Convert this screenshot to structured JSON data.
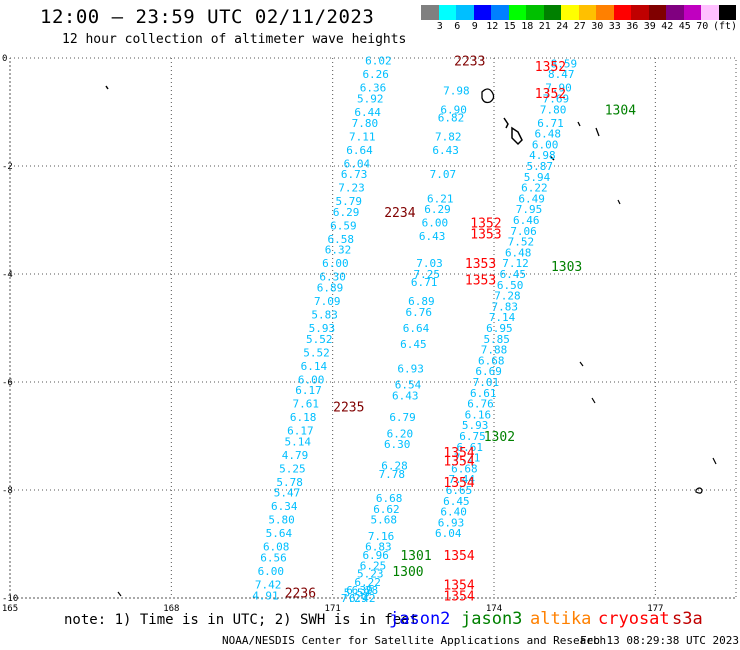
{
  "title": "12:00 – 23:59 UTC 02/11/2023",
  "subtitle": "12 hour collection of altimeter wave heights",
  "legend": {
    "unit_label": "(ft)",
    "colors": [
      "#808080",
      "#00ffff",
      "#00bfff",
      "#0000ff",
      "#0080ff",
      "#00ff00",
      "#00c000",
      "#008000",
      "#ffff00",
      "#ffc000",
      "#ff8000",
      "#ff0000",
      "#c00000",
      "#800000",
      "#800080",
      "#c000c0",
      "#ffc0ff",
      "#000000"
    ],
    "ticks": [
      "3",
      "6",
      "9",
      "12",
      "15",
      "18",
      "21",
      "24",
      "27",
      "30",
      "33",
      "36",
      "39",
      "42",
      "45",
      "70"
    ]
  },
  "axes": {
    "x_ticks": [
      "165",
      "168",
      "171",
      "174",
      "177"
    ],
    "y_ticks": [
      "0",
      "-2",
      "-4",
      "-6",
      "-8",
      "-10"
    ]
  },
  "tracks": [
    {
      "satellite": "jason2",
      "color": "#00bfff",
      "points": [
        {
          "lon": 171.85,
          "lat": -0.05,
          "swh": "6.02"
        },
        {
          "lon": 171.8,
          "lat": -0.3,
          "swh": "6.26"
        },
        {
          "lon": 171.75,
          "lat": -0.55,
          "swh": "6.36"
        },
        {
          "lon": 171.7,
          "lat": -0.75,
          "swh": "5.92"
        },
        {
          "lon": 171.65,
          "lat": -1.0,
          "swh": "6.44"
        },
        {
          "lon": 171.6,
          "lat": -1.2,
          "swh": "7.80"
        },
        {
          "lon": 171.55,
          "lat": -1.45,
          "swh": "7.11"
        },
        {
          "lon": 171.5,
          "lat": -1.7,
          "swh": "6.64"
        },
        {
          "lon": 171.45,
          "lat": -1.95,
          "swh": "6.04"
        },
        {
          "lon": 171.4,
          "lat": -2.15,
          "swh": "6.73"
        },
        {
          "lon": 171.35,
          "lat": -2.4,
          "swh": "7.23"
        },
        {
          "lon": 171.3,
          "lat": -2.65,
          "swh": "5.79"
        },
        {
          "lon": 171.25,
          "lat": -2.85,
          "swh": "6.29"
        },
        {
          "lon": 171.2,
          "lat": -3.1,
          "swh": "6.59"
        },
        {
          "lon": 171.15,
          "lat": -3.35,
          "swh": "6.58"
        },
        {
          "lon": 171.1,
          "lat": -3.55,
          "swh": "6.32"
        },
        {
          "lon": 171.05,
          "lat": -3.8,
          "swh": "6.00"
        },
        {
          "lon": 171.0,
          "lat": -4.05,
          "swh": "6.30"
        },
        {
          "lon": 170.95,
          "lat": -4.25,
          "swh": "6.89"
        },
        {
          "lon": 170.9,
          "lat": -4.5,
          "swh": "7.09"
        },
        {
          "lon": 170.85,
          "lat": -4.75,
          "swh": "5.83"
        },
        {
          "lon": 170.8,
          "lat": -5.0,
          "swh": "5.93"
        },
        {
          "lon": 170.75,
          "lat": -5.2,
          "swh": "5.52"
        },
        {
          "lon": 170.7,
          "lat": -5.45,
          "swh": "5.52"
        },
        {
          "lon": 170.65,
          "lat": -5.7,
          "swh": "6.14"
        },
        {
          "lon": 170.6,
          "lat": -5.95,
          "swh": "6.00"
        },
        {
          "lon": 170.55,
          "lat": -6.15,
          "swh": "6.17"
        },
        {
          "lon": 170.5,
          "lat": -6.4,
          "swh": "7.61"
        },
        {
          "lon": 170.45,
          "lat": -6.65,
          "swh": "6.18"
        },
        {
          "lon": 170.4,
          "lat": -6.9,
          "swh": "6.17"
        },
        {
          "lon": 170.35,
          "lat": -7.1,
          "swh": "5.14"
        },
        {
          "lon": 170.3,
          "lat": -7.35,
          "swh": "4.79"
        },
        {
          "lon": 170.25,
          "lat": -7.6,
          "swh": "5.25"
        },
        {
          "lon": 170.2,
          "lat": -7.85,
          "swh": "5.78"
        },
        {
          "lon": 170.15,
          "lat": -8.05,
          "swh": "5.47"
        },
        {
          "lon": 170.1,
          "lat": -8.3,
          "swh": "6.34"
        },
        {
          "lon": 170.05,
          "lat": -8.55,
          "swh": "5.80"
        },
        {
          "lon": 170.0,
          "lat": -8.8,
          "swh": "5.64"
        },
        {
          "lon": 169.95,
          "lat": -9.05,
          "swh": "6.08"
        },
        {
          "lon": 169.9,
          "lat": -9.25,
          "swh": "6.56"
        },
        {
          "lon": 169.85,
          "lat": -9.5,
          "swh": "6.00"
        },
        {
          "lon": 169.8,
          "lat": -9.75,
          "swh": "7.42"
        },
        {
          "lon": 169.75,
          "lat": -9.95,
          "swh": "4.91"
        }
      ]
    },
    {
      "satellite": "jason3",
      "color": "#00bfff",
      "points": [
        {
          "lon": 175.3,
          "lat": -0.1,
          "swh": "8.59"
        },
        {
          "lon": 175.25,
          "lat": -0.3,
          "swh": "8.47"
        },
        {
          "lon": 175.2,
          "lat": -0.55,
          "swh": "7.90"
        },
        {
          "lon": 175.15,
          "lat": -0.75,
          "swh": "7.69"
        },
        {
          "lon": 175.1,
          "lat": -0.95,
          "swh": "7.80"
        },
        {
          "lon": 175.05,
          "lat": -1.2,
          "swh": "6.71"
        },
        {
          "lon": 175.0,
          "lat": -1.4,
          "swh": "6.48"
        },
        {
          "lon": 174.95,
          "lat": -1.6,
          "swh": "6.00"
        },
        {
          "lon": 174.9,
          "lat": -1.8,
          "swh": "4.98"
        },
        {
          "lon": 174.85,
          "lat": -2.0,
          "swh": "5.87"
        },
        {
          "lon": 174.8,
          "lat": -2.2,
          "swh": "5.94"
        },
        {
          "lon": 174.75,
          "lat": -2.4,
          "swh": "6.22"
        },
        {
          "lon": 174.7,
          "lat": -2.6,
          "swh": "6.49"
        },
        {
          "lon": 174.65,
          "lat": -2.8,
          "swh": "7.95"
        },
        {
          "lon": 174.6,
          "lat": -3.0,
          "swh": "6.46"
        },
        {
          "lon": 174.55,
          "lat": -3.2,
          "swh": "7.06"
        },
        {
          "lon": 174.5,
          "lat": -3.4,
          "swh": "7.52"
        },
        {
          "lon": 174.45,
          "lat": -3.6,
          "swh": "6.48"
        },
        {
          "lon": 174.4,
          "lat": -3.8,
          "swh": "7.12"
        },
        {
          "lon": 174.35,
          "lat": -4.0,
          "swh": "6.45"
        },
        {
          "lon": 174.3,
          "lat": -4.2,
          "swh": "6.50"
        },
        {
          "lon": 174.25,
          "lat": -4.4,
          "swh": "7.28"
        },
        {
          "lon": 174.2,
          "lat": -4.6,
          "swh": "7.83"
        },
        {
          "lon": 174.15,
          "lat": -4.8,
          "swh": "7.14"
        },
        {
          "lon": 174.1,
          "lat": -5.0,
          "swh": "6.95"
        },
        {
          "lon": 174.05,
          "lat": -5.2,
          "swh": "5.85"
        },
        {
          "lon": 174.0,
          "lat": -5.4,
          "swh": "7.88"
        },
        {
          "lon": 173.95,
          "lat": -5.6,
          "swh": "6.68"
        },
        {
          "lon": 173.9,
          "lat": -5.8,
          "swh": "6.69"
        },
        {
          "lon": 173.85,
          "lat": -6.0,
          "swh": "7.01"
        },
        {
          "lon": 173.8,
          "lat": -6.2,
          "swh": "6.61"
        },
        {
          "lon": 173.75,
          "lat": -6.4,
          "swh": "6.76"
        },
        {
          "lon": 173.7,
          "lat": -6.6,
          "swh": "6.16"
        },
        {
          "lon": 173.65,
          "lat": -6.8,
          "swh": "5.93"
        },
        {
          "lon": 173.6,
          "lat": -7.0,
          "swh": "6.75"
        },
        {
          "lon": 173.55,
          "lat": -7.2,
          "swh": "6.61"
        },
        {
          "lon": 173.5,
          "lat": -7.4,
          "swh": "7.21"
        },
        {
          "lon": 173.45,
          "lat": -7.6,
          "swh": "6.68"
        },
        {
          "lon": 173.4,
          "lat": -7.8,
          "swh": "7.44"
        },
        {
          "lon": 173.35,
          "lat": -8.0,
          "swh": "6.65"
        },
        {
          "lon": 173.3,
          "lat": -8.2,
          "swh": "6.45"
        },
        {
          "lon": 173.25,
          "lat": -8.4,
          "swh": "6.40"
        },
        {
          "lon": 173.2,
          "lat": -8.6,
          "swh": "6.93"
        },
        {
          "lon": 173.15,
          "lat": -8.8,
          "swh": "6.04"
        }
      ]
    },
    {
      "satellite": "altika",
      "color": "#00bfff",
      "points": [
        {
          "lon": 173.3,
          "lat": -0.6,
          "swh": "7.98"
        },
        {
          "lon": 173.25,
          "lat": -0.95,
          "swh": "6.90"
        },
        {
          "lon": 173.2,
          "lat": -1.1,
          "swh": "6.82"
        },
        {
          "lon": 173.15,
          "lat": -1.45,
          "swh": "7.82"
        },
        {
          "lon": 173.1,
          "lat": -1.7,
          "swh": "6.43"
        },
        {
          "lon": 173.05,
          "lat": -2.15,
          "swh": "7.07"
        },
        {
          "lon": 173.0,
          "lat": -2.6,
          "swh": "6.21"
        },
        {
          "lon": 172.95,
          "lat": -2.8,
          "swh": "6.29"
        },
        {
          "lon": 172.9,
          "lat": -3.05,
          "swh": "6.00"
        },
        {
          "lon": 172.85,
          "lat": -3.3,
          "swh": "6.43"
        },
        {
          "lon": 172.8,
          "lat": -3.8,
          "swh": "7.03"
        },
        {
          "lon": 172.75,
          "lat": -4.0,
          "swh": "7.25"
        },
        {
          "lon": 172.7,
          "lat": -4.15,
          "swh": "6.71"
        },
        {
          "lon": 172.65,
          "lat": -4.5,
          "swh": "6.89"
        },
        {
          "lon": 172.6,
          "lat": -4.7,
          "swh": "6.76"
        },
        {
          "lon": 172.55,
          "lat": -5.0,
          "swh": "6.64"
        },
        {
          "lon": 172.5,
          "lat": -5.3,
          "swh": "6.45"
        },
        {
          "lon": 172.45,
          "lat": -5.75,
          "swh": "6.93"
        },
        {
          "lon": 172.4,
          "lat": -6.05,
          "swh": "6.54"
        },
        {
          "lon": 172.35,
          "lat": -6.25,
          "swh": "6.43"
        },
        {
          "lon": 172.3,
          "lat": -6.65,
          "swh": "6.79"
        },
        {
          "lon": 172.25,
          "lat": -6.95,
          "swh": "6.20"
        },
        {
          "lon": 172.2,
          "lat": -7.15,
          "swh": "6.30"
        },
        {
          "lon": 172.15,
          "lat": -7.55,
          "swh": "6.28"
        },
        {
          "lon": 172.1,
          "lat": -7.7,
          "swh": "7.78"
        },
        {
          "lon": 172.05,
          "lat": -8.15,
          "swh": "6.68"
        },
        {
          "lon": 172.0,
          "lat": -8.35,
          "swh": "6.62"
        },
        {
          "lon": 171.95,
          "lat": -8.55,
          "swh": "5.68"
        },
        {
          "lon": 171.9,
          "lat": -8.85,
          "swh": "7.16"
        },
        {
          "lon": 171.85,
          "lat": -9.05,
          "swh": "6.83"
        },
        {
          "lon": 171.8,
          "lat": -9.2,
          "swh": "6.96"
        },
        {
          "lon": 171.75,
          "lat": -9.4,
          "swh": "6.25"
        },
        {
          "lon": 171.7,
          "lat": -9.55,
          "swh": "5.23"
        },
        {
          "lon": 171.65,
          "lat": -9.7,
          "swh": "6.22"
        },
        {
          "lon": 171.6,
          "lat": -9.85,
          "swh": "6.28"
        },
        {
          "lon": 171.55,
          "lat": -10.0,
          "swh": "6.42"
        },
        {
          "lon": 171.5,
          "lat": -9.85,
          "swh": "6.39"
        },
        {
          "lon": 171.45,
          "lat": -9.9,
          "swh": "5.59"
        },
        {
          "lon": 171.4,
          "lat": -10.0,
          "swh": "7.29"
        }
      ]
    }
  ],
  "time_labels": [
    {
      "lon": 173.55,
      "lat": -0.05,
      "text": "2233",
      "color": "#800000"
    },
    {
      "lon": 175.05,
      "lat": -0.15,
      "text": "1352",
      "color": "#ff0000"
    },
    {
      "lon": 175.05,
      "lat": -0.65,
      "text": "1352",
      "color": "#ff0000"
    },
    {
      "lon": 176.35,
      "lat": -0.95,
      "text": "1304",
      "color": "#008000"
    },
    {
      "lon": 172.25,
      "lat": -2.85,
      "text": "2234",
      "color": "#800000"
    },
    {
      "lon": 173.85,
      "lat": -3.05,
      "text": "1352",
      "color": "#ff0000"
    },
    {
      "lon": 173.85,
      "lat": -3.25,
      "text": "1353",
      "color": "#ff0000"
    },
    {
      "lon": 173.75,
      "lat": -3.8,
      "text": "1353",
      "color": "#ff0000"
    },
    {
      "lon": 173.75,
      "lat": -4.1,
      "text": "1353",
      "color": "#ff0000"
    },
    {
      "lon": 175.35,
      "lat": -3.85,
      "text": "1303",
      "color": "#008000"
    },
    {
      "lon": 171.3,
      "lat": -6.45,
      "text": "2235",
      "color": "#800000"
    },
    {
      "lon": 174.1,
      "lat": -7.0,
      "text": "1302",
      "color": "#008000"
    },
    {
      "lon": 173.35,
      "lat": -7.3,
      "text": "1354",
      "color": "#ff0000"
    },
    {
      "lon": 173.35,
      "lat": -7.45,
      "text": "1354",
      "color": "#ff0000"
    },
    {
      "lon": 173.35,
      "lat": -7.85,
      "text": "1354",
      "color": "#ff0000"
    },
    {
      "lon": 173.35,
      "lat": -9.2,
      "text": "1354",
      "color": "#ff0000"
    },
    {
      "lon": 173.35,
      "lat": -9.75,
      "text": "1354",
      "color": "#ff0000"
    },
    {
      "lon": 173.35,
      "lat": -9.95,
      "text": "1354",
      "color": "#ff0000"
    },
    {
      "lon": 172.55,
      "lat": -9.2,
      "text": "1301",
      "color": "#008000"
    },
    {
      "lon": 172.4,
      "lat": -9.5,
      "text": "1300",
      "color": "#008000"
    },
    {
      "lon": 170.4,
      "lat": -9.9,
      "text": "2236",
      "color": "#800000"
    }
  ],
  "footer": {
    "note": "note: 1) Time is in UTC; 2) SWH is in feet",
    "satellites": [
      {
        "name": "jason2",
        "color": "#0000ff"
      },
      {
        "name": "jason3",
        "color": "#008000"
      },
      {
        "name": "altika",
        "color": "#ff8000"
      },
      {
        "name": "cryosat",
        "color": "#ff0000"
      },
      {
        "name": "s3a",
        "color": "#c00000"
      }
    ],
    "credit": "NOAA/NESDIS Center for Satellite Applications and Research",
    "timestamp": "Feb 13 08:29:38 UTC 2023"
  }
}
